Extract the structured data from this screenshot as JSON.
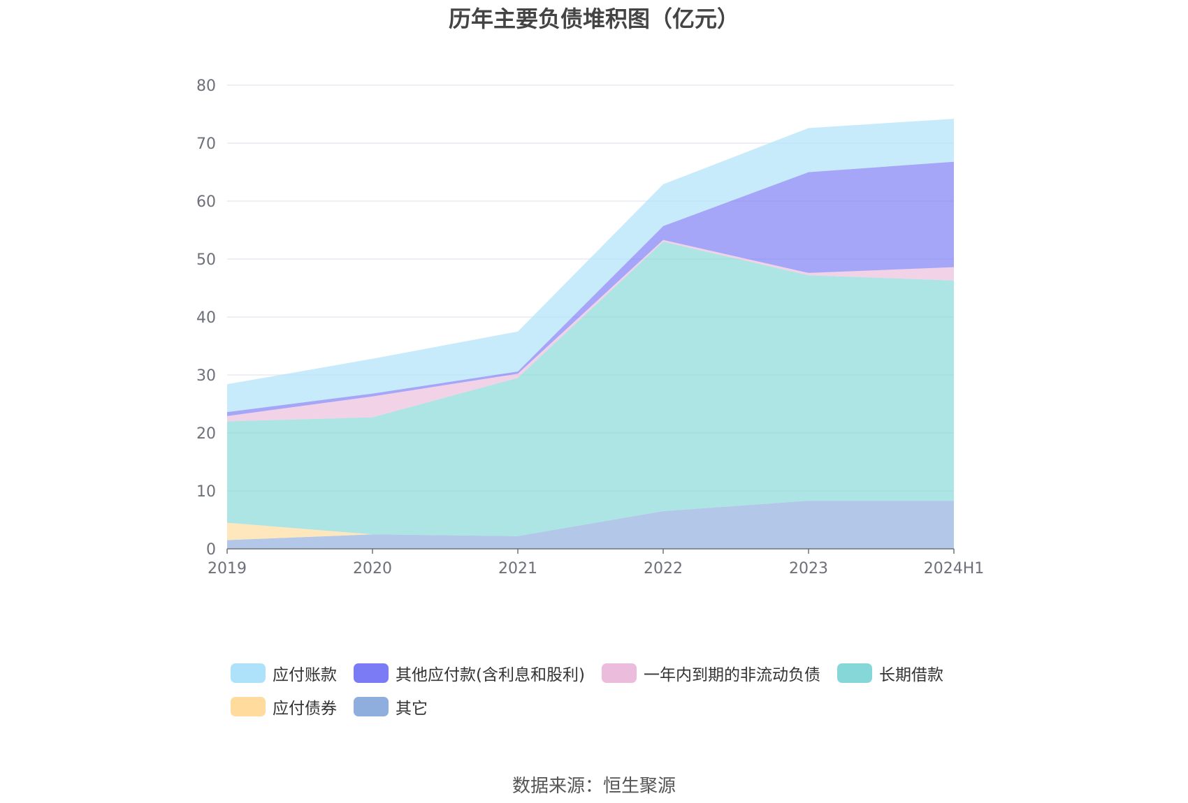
{
  "chart_data": {
    "type": "area",
    "stacked": true,
    "title": "历年主要负债堆积图（亿元）",
    "categories": [
      "2019",
      "2020",
      "2021",
      "2022",
      "2023",
      "2024H1"
    ],
    "ylim": [
      0,
      80
    ],
    "yticks": [
      "0",
      "10",
      "20",
      "30",
      "40",
      "50",
      "60",
      "70",
      "80"
    ],
    "grid": true,
    "legend_position": "bottom",
    "series": [
      {
        "name": "其它",
        "color": "#8faedd",
        "values": [
          1.5,
          2.5,
          2.2,
          6.5,
          8.3,
          8.3
        ]
      },
      {
        "name": "应付债券",
        "color": "#ffdc9d",
        "values": [
          3.0,
          0.0,
          0.0,
          0.0,
          0.0,
          0.0
        ]
      },
      {
        "name": "长期借款",
        "color": "#86d8d8",
        "values": [
          17.5,
          20.2,
          27.3,
          46.5,
          38.9,
          38.0
        ]
      },
      {
        "name": "一年内到期的非流动负债",
        "color": "#ebbcdb",
        "values": [
          0.9,
          3.6,
          0.7,
          0.3,
          0.4,
          2.3
        ]
      },
      {
        "name": "其他应付款(含利息和股利)",
        "color": "#7b7cf5",
        "values": [
          0.7,
          0.5,
          0.4,
          2.4,
          17.4,
          18.2
        ]
      },
      {
        "name": "应付账款",
        "color": "#aee2fb",
        "values": [
          4.8,
          6.0,
          6.9,
          7.2,
          7.6,
          7.4
        ]
      }
    ],
    "legend_order": [
      "应付账款",
      "其他应付款(含利息和股利)",
      "一年内到期的非流动负债",
      "长期借款",
      "应付债券",
      "其它"
    ]
  },
  "source_text": "数据来源：恒生聚源"
}
